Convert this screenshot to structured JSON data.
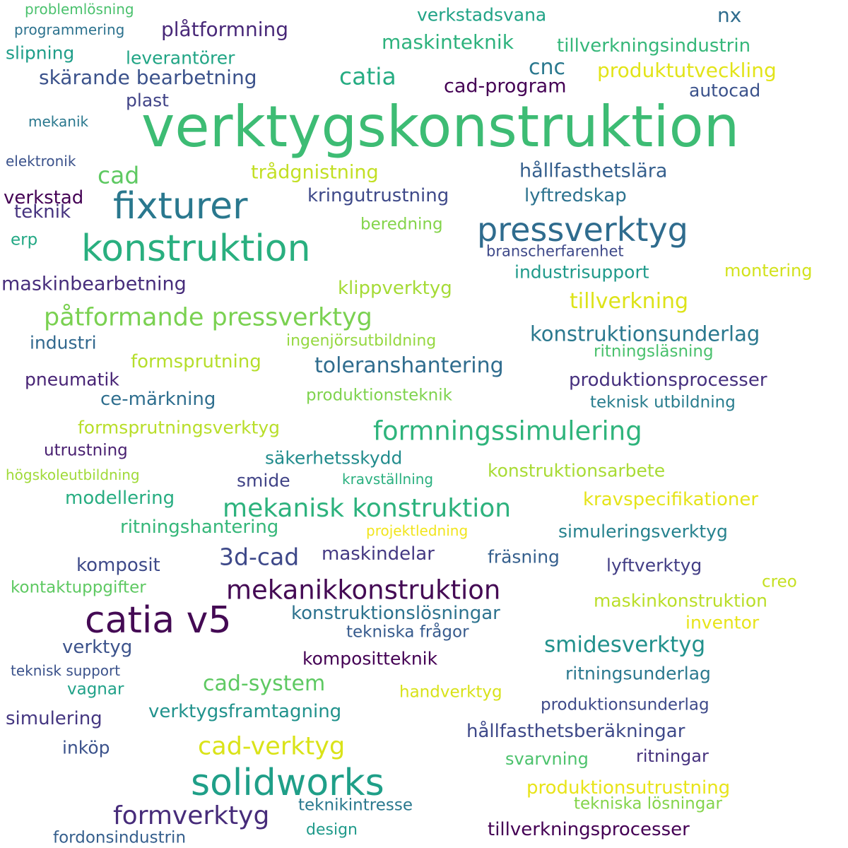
{
  "words": [
    {
      "text": "verktygskonstruktion",
      "weight": 1.0,
      "color": "#3dbc74"
    },
    {
      "text": "catia v5",
      "weight": 0.64,
      "color": "#440a54"
    },
    {
      "text": "solidworks",
      "weight": 0.62,
      "color": "#1f9f88"
    },
    {
      "text": "fixturer",
      "weight": 0.62,
      "color": "#2a788e"
    },
    {
      "text": "konstruktion",
      "weight": 0.62,
      "color": "#29af7f"
    },
    {
      "text": "pressverktyg",
      "weight": 0.56,
      "color": "#2f6c8e"
    },
    {
      "text": "mekanikkonstruktion",
      "weight": 0.46,
      "color": "#440a54"
    },
    {
      "text": "formningssimulering",
      "weight": 0.46,
      "color": "#2fb47c"
    },
    {
      "text": "mekanisk konstruktion",
      "weight": 0.44,
      "color": "#2db27d"
    },
    {
      "text": "påtformande pressverktyg",
      "weight": 0.44,
      "color": "#7ad151"
    },
    {
      "text": "formverktyg",
      "weight": 0.44,
      "color": "#472c7a"
    },
    {
      "text": "cad-verktyg",
      "weight": 0.44,
      "color": "#dae319"
    },
    {
      "text": "3d-cad",
      "weight": 0.42,
      "color": "#3e4989"
    },
    {
      "text": "catia",
      "weight": 0.4,
      "color": "#25ac82"
    },
    {
      "text": "cad",
      "weight": 0.4,
      "color": "#5ec962"
    },
    {
      "text": "smidesverktyg",
      "weight": 0.38,
      "color": "#21918c"
    },
    {
      "text": "tillverkning",
      "weight": 0.38,
      "color": "#dde318"
    },
    {
      "text": "toleranshantering",
      "weight": 0.36,
      "color": "#2f6c8e"
    },
    {
      "text": "konstruktionsunderlag",
      "weight": 0.35,
      "color": "#2a788e"
    },
    {
      "text": "cad-system",
      "weight": 0.36,
      "color": "#5ec962"
    },
    {
      "text": "cnc",
      "weight": 0.34,
      "color": "#2a788e"
    },
    {
      "text": "nx",
      "weight": 0.34,
      "color": "#2f6c8e"
    },
    {
      "text": "skärande bearbetning",
      "weight": 0.34,
      "color": "#3b528b"
    },
    {
      "text": "plåtformning",
      "weight": 0.34,
      "color": "#482878"
    },
    {
      "text": "maskinteknik",
      "weight": 0.33,
      "color": "#2db27d"
    },
    {
      "text": "produktutveckling",
      "weight": 0.33,
      "color": "#e2e418"
    },
    {
      "text": "cad-program",
      "weight": 0.32,
      "color": "#440154"
    },
    {
      "text": "tillverkningsindustrin",
      "weight": 0.3,
      "color": "#35b779"
    },
    {
      "text": "verkstadsvana",
      "weight": 0.3,
      "color": "#20a386"
    },
    {
      "text": "autocad",
      "weight": 0.3,
      "color": "#3b528b"
    },
    {
      "text": "leverantörer",
      "weight": 0.3,
      "color": "#21a585"
    },
    {
      "text": "slipning",
      "weight": 0.3,
      "color": "#1f9e89"
    },
    {
      "text": "plast",
      "weight": 0.3,
      "color": "#414487"
    },
    {
      "text": "trådgnistning",
      "weight": 0.31,
      "color": "#c2df23"
    },
    {
      "text": "hållfasthetslära",
      "weight": 0.31,
      "color": "#355f8d"
    },
    {
      "text": "kringutrustning",
      "weight": 0.3,
      "color": "#3e4989"
    },
    {
      "text": "lyftredskap",
      "weight": 0.3,
      "color": "#2c728e"
    },
    {
      "text": "verkstad",
      "weight": 0.3,
      "color": "#440154"
    },
    {
      "text": "teknik",
      "weight": 0.3,
      "color": "#46337f"
    },
    {
      "text": "beredning",
      "weight": 0.28,
      "color": "#84d44b"
    },
    {
      "text": "erp",
      "weight": 0.28,
      "color": "#22a884"
    },
    {
      "text": "branscherfarenhet",
      "weight": 0.25,
      "color": "#3e4989"
    },
    {
      "text": "industrisupport",
      "weight": 0.3,
      "color": "#1f9a8a"
    },
    {
      "text": "montering",
      "weight": 0.28,
      "color": "#d2e21b"
    },
    {
      "text": "maskinbearbetning",
      "weight": 0.31,
      "color": "#472d7b"
    },
    {
      "text": "klippverktyg",
      "weight": 0.31,
      "color": "#a5db36"
    },
    {
      "text": "industri",
      "weight": 0.3,
      "color": "#31688e"
    },
    {
      "text": "ingenjörsutbildning",
      "weight": 0.26,
      "color": "#95d840"
    },
    {
      "text": "ritningsläsning",
      "weight": 0.28,
      "color": "#4ac16d"
    },
    {
      "text": "formsprutning",
      "weight": 0.31,
      "color": "#b5de2b"
    },
    {
      "text": "pneumatik",
      "weight": 0.3,
      "color": "#482475"
    },
    {
      "text": "produktionsprocesser",
      "weight": 0.31,
      "color": "#46307e"
    },
    {
      "text": "ce-märkning",
      "weight": 0.31,
      "color": "#2e6e8e"
    },
    {
      "text": "produktionsteknik",
      "weight": 0.28,
      "color": "#7fd34e"
    },
    {
      "text": "teknisk utbildning",
      "weight": 0.28,
      "color": "#287d8e"
    },
    {
      "text": "formsprutningsverktyg",
      "weight": 0.3,
      "color": "#b8de29"
    },
    {
      "text": "utrustning",
      "weight": 0.28,
      "color": "#481f70"
    },
    {
      "text": "säkerhetsskydd",
      "weight": 0.3,
      "color": "#228c8d"
    },
    {
      "text": "högskoleutbildning",
      "weight": 0.25,
      "color": "#a0da39"
    },
    {
      "text": "kravställning",
      "weight": 0.25,
      "color": "#2ab07f"
    },
    {
      "text": "smide",
      "weight": 0.3,
      "color": "#414487"
    },
    {
      "text": "konstruktionsarbete",
      "weight": 0.3,
      "color": "#a8db34"
    },
    {
      "text": "modellering",
      "weight": 0.31,
      "color": "#27ad81"
    },
    {
      "text": "kravspecifikationer",
      "weight": 0.31,
      "color": "#e5e419"
    },
    {
      "text": "ritningshantering",
      "weight": 0.31,
      "color": "#35b779"
    },
    {
      "text": "projektledning",
      "weight": 0.25,
      "color": "#f1e51d"
    },
    {
      "text": "simuleringsverktyg",
      "weight": 0.3,
      "color": "#26828e"
    },
    {
      "text": "maskindelar",
      "weight": 0.31,
      "color": "#443983"
    },
    {
      "text": "komposit",
      "weight": 0.31,
      "color": "#3e4a89"
    },
    {
      "text": "fräsning",
      "weight": 0.3,
      "color": "#355f8d"
    },
    {
      "text": "lyftverktyg",
      "weight": 0.3,
      "color": "#433e85"
    },
    {
      "text": "kontaktuppgifter",
      "weight": 0.28,
      "color": "#5ec962"
    },
    {
      "text": "creo",
      "weight": 0.28,
      "color": "#c5e021"
    },
    {
      "text": "konstruktionslösningar",
      "weight": 0.3,
      "color": "#2c728e"
    },
    {
      "text": "maskinkonstruktion",
      "weight": 0.3,
      "color": "#bade28"
    },
    {
      "text": "tekniska frågor",
      "weight": 0.28,
      "color": "#375b8d"
    },
    {
      "text": "inventor",
      "weight": 0.3,
      "color": "#e7e419"
    },
    {
      "text": "verktyg",
      "weight": 0.31,
      "color": "#3b528b"
    },
    {
      "text": "kompositteknik",
      "weight": 0.3,
      "color": "#440154"
    },
    {
      "text": "teknisk support",
      "weight": 0.23,
      "color": "#3b528b"
    },
    {
      "text": "ritningsunderlag",
      "weight": 0.3,
      "color": "#2a788e"
    },
    {
      "text": "vagnar",
      "weight": 0.28,
      "color": "#1fa188"
    },
    {
      "text": "handverktyg",
      "weight": 0.28,
      "color": "#d8e219"
    },
    {
      "text": "produktionsunderlag",
      "weight": 0.28,
      "color": "#3e4a89"
    },
    {
      "text": "simulering",
      "weight": 0.3,
      "color": "#453781"
    },
    {
      "text": "verktygsframtagning",
      "weight": 0.31,
      "color": "#20928c"
    },
    {
      "text": "hållfasthetsberäkningar",
      "weight": 0.31,
      "color": "#3e4989"
    },
    {
      "text": "inköp",
      "weight": 0.28,
      "color": "#3b528b"
    },
    {
      "text": "ritningar",
      "weight": 0.28,
      "color": "#46327e"
    },
    {
      "text": "svarvning",
      "weight": 0.28,
      "color": "#4cc26c"
    },
    {
      "text": "produktionsutrustning",
      "weight": 0.31,
      "color": "#e8e419"
    },
    {
      "text": "teknikintresse",
      "weight": 0.28,
      "color": "#2a788e"
    },
    {
      "text": "tekniska lösningar",
      "weight": 0.28,
      "color": "#84d44b"
    },
    {
      "text": "design",
      "weight": 0.26,
      "color": "#1f9a8a"
    },
    {
      "text": "tillverkningsprocesser",
      "weight": 0.3,
      "color": "#440154"
    },
    {
      "text": "fordonsindustrin",
      "weight": 0.28,
      "color": "#355f8d"
    },
    {
      "text": "problemlösning",
      "weight": 0.23,
      "color": "#4ac16d"
    },
    {
      "text": "programmering",
      "weight": 0.23,
      "color": "#2c728e"
    },
    {
      "text": "mekanik",
      "weight": 0.23,
      "color": "#2a788e"
    },
    {
      "text": "elektronik",
      "weight": 0.23,
      "color": "#3b528b"
    }
  ]
}
